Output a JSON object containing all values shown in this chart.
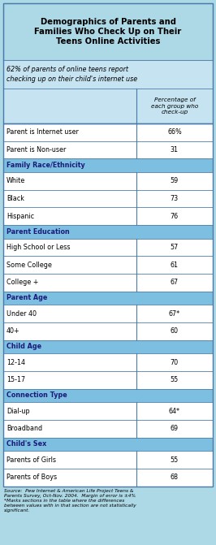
{
  "title": "Demographics of Parents and\nFamilies Who Check Up on Their\nTeens Online Activities",
  "subtitle": "62% of parents of online teens report\nchecking up on their child's internet use",
  "col_header": "Percentage of\neach group who\ncheck-up",
  "rows": [
    {
      "label": "Parent is Internet user",
      "value": "66%",
      "is_header": false
    },
    {
      "label": "Parent is Non-user",
      "value": "31",
      "is_header": false
    },
    {
      "label": "Family Race/Ethnicity",
      "value": "",
      "is_header": true
    },
    {
      "label": "White",
      "value": "59",
      "is_header": false
    },
    {
      "label": "Black",
      "value": "73",
      "is_header": false
    },
    {
      "label": "Hispanic",
      "value": "76",
      "is_header": false
    },
    {
      "label": "Parent Education",
      "value": "",
      "is_header": true
    },
    {
      "label": "High School or Less",
      "value": "57",
      "is_header": false
    },
    {
      "label": "Some College",
      "value": "61",
      "is_header": false
    },
    {
      "label": "College +",
      "value": "67",
      "is_header": false
    },
    {
      "label": "Parent Age",
      "value": "",
      "is_header": true
    },
    {
      "label": "Under 40",
      "value": "67*",
      "is_header": false
    },
    {
      "label": "40+",
      "value": "60",
      "is_header": false
    },
    {
      "label": "Child Age",
      "value": "",
      "is_header": true
    },
    {
      "label": "12-14",
      "value": "70",
      "is_header": false
    },
    {
      "label": "15-17",
      "value": "55",
      "is_header": false
    },
    {
      "label": "Connection Type",
      "value": "",
      "is_header": true
    },
    {
      "label": "Dial-up",
      "value": "64*",
      "is_header": false
    },
    {
      "label": "Broadband",
      "value": "69",
      "is_header": false
    },
    {
      "label": "Child's Sex",
      "value": "",
      "is_header": true
    },
    {
      "label": "Parents of Girls",
      "value": "55",
      "is_header": false
    },
    {
      "label": "Parents of Boys",
      "value": "68",
      "is_header": false
    }
  ],
  "footer": "Source:  Pew Internet & American Life Project Teens &\nParents Survey, Oct-Nov. 2004.  Margin of error is ±4%\n*Marks sections in the table where the differences\nbetween values with in that section are not statistically\nsignificant.",
  "title_bg": "#add8e6",
  "subtitle_bg": "#c5e3f0",
  "section_bg": "#7dbfe0",
  "row_bg": "#ffffff",
  "border_color": "#4a7aaa",
  "title_color": "#000000",
  "section_text_color": "#1a1a7a",
  "row_text_color": "#000000",
  "col_split": 0.635,
  "fig_width": 2.66,
  "fig_height": 6.71,
  "dpi": 100
}
